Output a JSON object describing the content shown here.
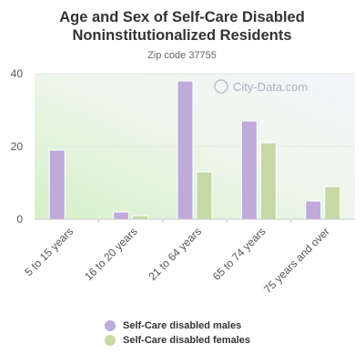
{
  "chart_data": {
    "type": "bar",
    "title": "Age and Sex of Self-Care Disabled Noninstitutionalized Residents",
    "subtitle": "Zip code 37755",
    "categories": [
      "5 to 15 years",
      "16 to 20 years",
      "21 to 64 years",
      "65 to 74 years",
      "75 years and over"
    ],
    "series": [
      {
        "name": "Self-Care disabled males",
        "color": "#c0a9db",
        "values": [
          19,
          2,
          38,
          27,
          5
        ]
      },
      {
        "name": "Self-Care disabled females",
        "color": "#c6d9a7",
        "values": [
          null,
          1,
          13,
          21,
          9
        ]
      }
    ],
    "yticks": [
      0,
      20,
      40
    ],
    "ylim": [
      0,
      40
    ],
    "xlabel": "",
    "ylabel": "",
    "grid": true,
    "legend_position": "bottom",
    "watermark": "City-Data.com"
  }
}
